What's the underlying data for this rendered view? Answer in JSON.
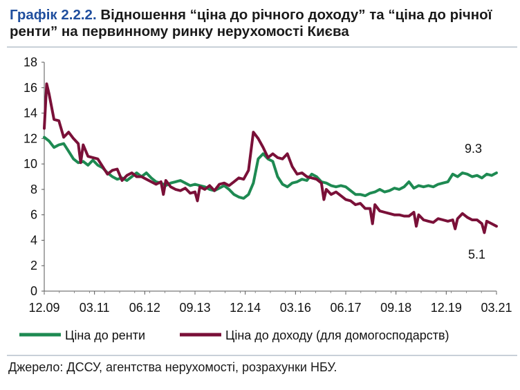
{
  "title": {
    "number": "Графік 2.2.2.",
    "text": "Відношення “ціна до річного доходу” та “ціна до річної ренти” на первинному ринку нерухомості Києва"
  },
  "source": "Джерело: ДССУ, агентства нерухомості, розрахунки НБУ.",
  "colors": {
    "rent": "#1e8a52",
    "income": "#7a1038"
  },
  "chart_data": {
    "type": "line",
    "x_tick_labels": [
      "12.09",
      "03.11",
      "06.12",
      "09.13",
      "12.14",
      "03.16",
      "06.17",
      "09.18",
      "12.19",
      "03.21"
    ],
    "y_ticks": [
      0,
      2,
      4,
      6,
      8,
      10,
      12,
      14,
      16,
      18
    ],
    "ylim": [
      0,
      18
    ],
    "x_range": [
      "12.09",
      "03.21"
    ],
    "grid": false,
    "legend_position": "bottom",
    "annotations": [
      {
        "text": "9.3",
        "series": "Ціна до ренти"
      },
      {
        "text": "5.1",
        "series": "Ціна до доходу (для домогосподарств)"
      }
    ],
    "series": [
      {
        "name": "Ціна до ренти",
        "color": "#1e8a52",
        "points": [
          [
            0,
            12.1
          ],
          [
            1,
            11.8
          ],
          [
            2,
            11.3
          ],
          [
            3,
            11.5
          ],
          [
            4,
            11.6
          ],
          [
            5,
            11.0
          ],
          [
            6,
            10.4
          ],
          [
            7,
            10.1
          ],
          [
            8,
            10.2
          ],
          [
            9,
            9.9
          ],
          [
            10,
            10.3
          ],
          [
            11,
            9.9
          ],
          [
            12,
            9.7
          ],
          [
            13,
            9.3
          ],
          [
            14,
            9.0
          ],
          [
            15,
            8.8
          ],
          [
            16,
            8.9
          ],
          [
            17,
            8.7
          ],
          [
            18,
            9.0
          ],
          [
            19,
            9.3
          ],
          [
            20,
            9.0
          ],
          [
            21,
            9.3
          ],
          [
            22,
            8.9
          ],
          [
            23,
            8.6
          ],
          [
            24,
            8.5
          ],
          [
            25,
            8.3
          ],
          [
            26,
            8.5
          ],
          [
            27,
            8.6
          ],
          [
            28,
            8.7
          ],
          [
            29,
            8.5
          ],
          [
            30,
            8.3
          ],
          [
            31,
            8.4
          ],
          [
            32,
            8.3
          ],
          [
            33,
            8.2
          ],
          [
            34,
            8.0
          ],
          [
            35,
            7.9
          ],
          [
            36,
            8.1
          ],
          [
            37,
            8.3
          ],
          [
            38,
            8.0
          ],
          [
            39,
            7.6
          ],
          [
            40,
            7.4
          ],
          [
            41,
            7.3
          ],
          [
            42,
            7.6
          ],
          [
            43,
            8.5
          ],
          [
            44,
            10.4
          ],
          [
            45,
            10.8
          ],
          [
            46,
            10.4
          ],
          [
            47,
            10.2
          ],
          [
            48,
            9.0
          ],
          [
            49,
            8.4
          ],
          [
            50,
            8.2
          ],
          [
            51,
            8.5
          ],
          [
            52,
            8.6
          ],
          [
            53,
            8.8
          ],
          [
            54,
            8.7
          ],
          [
            55,
            9.2
          ],
          [
            56,
            9.0
          ],
          [
            57,
            8.6
          ],
          [
            58,
            8.5
          ],
          [
            59,
            8.3
          ],
          [
            60,
            8.2
          ],
          [
            61,
            8.3
          ],
          [
            62,
            8.2
          ],
          [
            63,
            7.9
          ],
          [
            64,
            7.6
          ],
          [
            65,
            7.6
          ],
          [
            66,
            7.5
          ],
          [
            67,
            7.7
          ],
          [
            68,
            7.8
          ],
          [
            69,
            8.0
          ],
          [
            70,
            7.8
          ],
          [
            71,
            7.9
          ],
          [
            72,
            8.1
          ],
          [
            73,
            8.0
          ],
          [
            74,
            8.2
          ],
          [
            75,
            8.6
          ],
          [
            76,
            8.1
          ],
          [
            77,
            8.3
          ],
          [
            78,
            8.2
          ],
          [
            79,
            8.3
          ],
          [
            80,
            8.2
          ],
          [
            81,
            8.4
          ],
          [
            82,
            8.5
          ],
          [
            83,
            8.6
          ],
          [
            84,
            9.2
          ],
          [
            85,
            9.0
          ],
          [
            86,
            9.3
          ],
          [
            87,
            9.2
          ],
          [
            88,
            9.0
          ],
          [
            89,
            9.1
          ],
          [
            90,
            8.9
          ],
          [
            91,
            9.2
          ],
          [
            92,
            9.1
          ],
          [
            93,
            9.3
          ]
        ]
      },
      {
        "name": "Ціна до доходу (для домогосподарств)",
        "color": "#7a1038",
        "points": [
          [
            0,
            12.8
          ],
          [
            0.5,
            16.3
          ],
          [
            1,
            15.5
          ],
          [
            2,
            13.5
          ],
          [
            3,
            13.4
          ],
          [
            4,
            12.1
          ],
          [
            5,
            12.5
          ],
          [
            6,
            12.0
          ],
          [
            7,
            11.6
          ],
          [
            7.5,
            10.1
          ],
          [
            8,
            11.5
          ],
          [
            9,
            10.6
          ],
          [
            10,
            10.5
          ],
          [
            11,
            10.4
          ],
          [
            12,
            9.8
          ],
          [
            13,
            9.2
          ],
          [
            14,
            9.5
          ],
          [
            15,
            9.6
          ],
          [
            16,
            8.7
          ],
          [
            17,
            9.1
          ],
          [
            18,
            9.3
          ],
          [
            19,
            9.0
          ],
          [
            20,
            9.0
          ],
          [
            21,
            8.8
          ],
          [
            22,
            8.6
          ],
          [
            23,
            8.4
          ],
          [
            24,
            8.6
          ],
          [
            24.5,
            7.6
          ],
          [
            25,
            8.7
          ],
          [
            26,
            8.2
          ],
          [
            27,
            8.0
          ],
          [
            28,
            7.9
          ],
          [
            29,
            8.1
          ],
          [
            30,
            7.7
          ],
          [
            31,
            7.8
          ],
          [
            31.5,
            7.1
          ],
          [
            32,
            8.2
          ],
          [
            33,
            8.0
          ],
          [
            34,
            8.3
          ],
          [
            35,
            7.9
          ],
          [
            36,
            8.4
          ],
          [
            37,
            8.5
          ],
          [
            38,
            8.3
          ],
          [
            39,
            8.6
          ],
          [
            40,
            8.9
          ],
          [
            41,
            8.8
          ],
          [
            42,
            9.5
          ],
          [
            43,
            12.5
          ],
          [
            44,
            12.0
          ],
          [
            45,
            11.3
          ],
          [
            46,
            10.5
          ],
          [
            47,
            10.8
          ],
          [
            48,
            10.5
          ],
          [
            49,
            10.4
          ],
          [
            50,
            10.8
          ],
          [
            51,
            9.8
          ],
          [
            52,
            9.2
          ],
          [
            53,
            9.3
          ],
          [
            54,
            9.0
          ],
          [
            55,
            8.9
          ],
          [
            56,
            8.8
          ],
          [
            57,
            8.5
          ],
          [
            57.5,
            7.2
          ],
          [
            58,
            8.0
          ],
          [
            59,
            7.6
          ],
          [
            60,
            7.8
          ],
          [
            61,
            7.5
          ],
          [
            62,
            7.2
          ],
          [
            63,
            7.1
          ],
          [
            64,
            6.8
          ],
          [
            65,
            6.9
          ],
          [
            66,
            6.5
          ],
          [
            67,
            6.5
          ],
          [
            67.5,
            5.3
          ],
          [
            68,
            6.8
          ],
          [
            69,
            6.3
          ],
          [
            70,
            6.2
          ],
          [
            71,
            6.1
          ],
          [
            72,
            6.0
          ],
          [
            73,
            6.0
          ],
          [
            74,
            5.9
          ],
          [
            75,
            5.9
          ],
          [
            76,
            6.2
          ],
          [
            76.5,
            5.1
          ],
          [
            77,
            6.0
          ],
          [
            78,
            5.6
          ],
          [
            79,
            5.5
          ],
          [
            80,
            5.4
          ],
          [
            81,
            5.7
          ],
          [
            82,
            5.6
          ],
          [
            83,
            5.5
          ],
          [
            84,
            5.6
          ],
          [
            84.5,
            4.9
          ],
          [
            85,
            5.7
          ],
          [
            86,
            6.1
          ],
          [
            87,
            5.8
          ],
          [
            88,
            5.6
          ],
          [
            89,
            5.6
          ],
          [
            90,
            5.3
          ],
          [
            90.5,
            4.6
          ],
          [
            91,
            5.5
          ],
          [
            92,
            5.3
          ],
          [
            93,
            5.1
          ]
        ]
      }
    ]
  }
}
